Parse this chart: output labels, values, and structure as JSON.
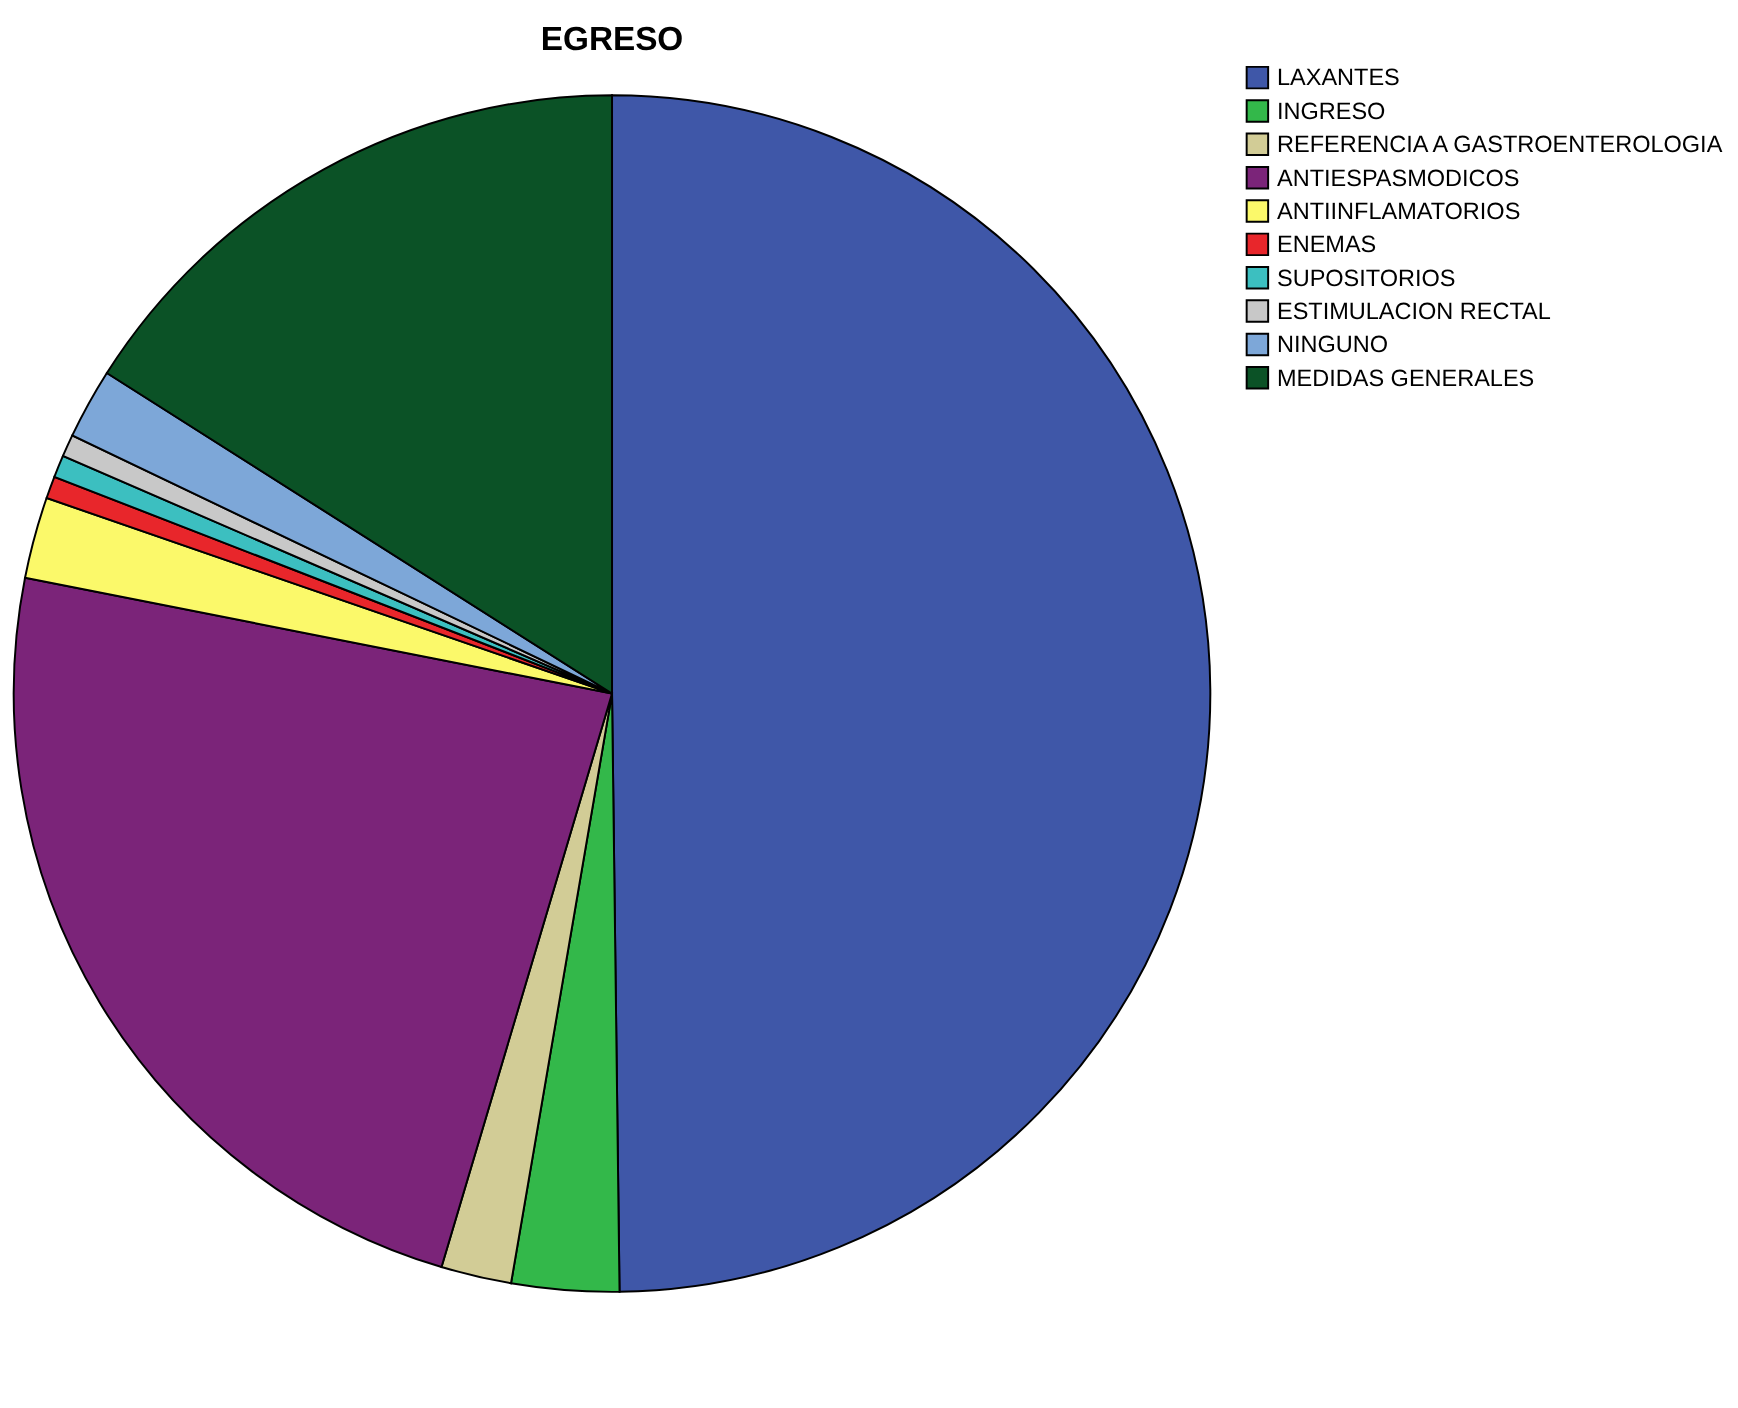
{
  "chart_data": {
    "type": "pie",
    "title": "EGRESO",
    "categories": [
      "LAXANTES",
      "INGRESO",
      "REFERENCIA A GASTROENTEROLOGIA",
      "ANTIESPASMODICOS",
      "ANTIINFLAMATORIOS",
      "ENEMAS",
      "SUPOSITORIOS",
      "ESTIMULACION RECTAL",
      "NINGUNO",
      "MEDIDAS GENERALES"
    ],
    "values": [
      49.8,
      2.9,
      1.9,
      23.5,
      2.2,
      0.6,
      0.6,
      0.6,
      1.9,
      16.0
    ],
    "colors": [
      "#3f57a8",
      "#33b84a",
      "#d2cc96",
      "#7b2479",
      "#fbf96a",
      "#e8262b",
      "#3cbfc0",
      "#c8c8c8",
      "#7da7d8",
      "#0b5226"
    ],
    "legend": "top right"
  }
}
